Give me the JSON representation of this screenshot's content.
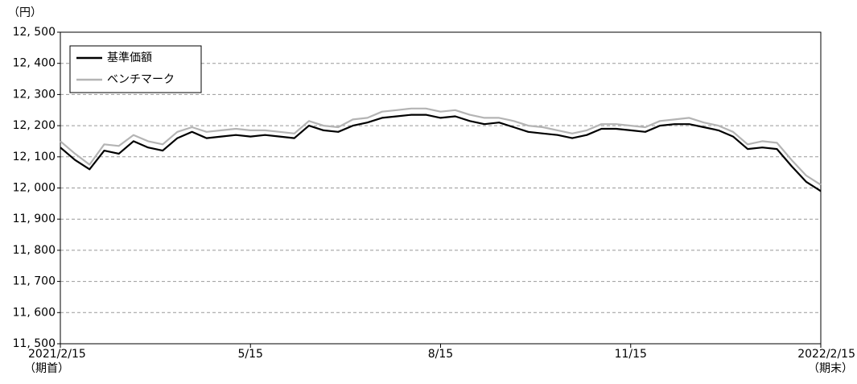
{
  "chart_data": {
    "type": "line",
    "y_unit_label": "（円）",
    "categories": [
      "2021/2/15",
      null,
      null,
      null,
      null,
      null,
      null,
      null,
      null,
      null,
      null,
      null,
      null,
      "5/15",
      null,
      null,
      null,
      null,
      null,
      null,
      null,
      null,
      null,
      null,
      null,
      null,
      "8/15",
      null,
      null,
      null,
      null,
      null,
      null,
      null,
      null,
      null,
      null,
      null,
      null,
      "11/15",
      null,
      null,
      null,
      null,
      null,
      null,
      null,
      null,
      null,
      null,
      null,
      null,
      "2022/2/15"
    ],
    "start_note": "（期首）",
    "end_note": "（期末）",
    "series": [
      {
        "name": "基準価額",
        "color": "#000000",
        "width": 2.2,
        "values": [
          12130,
          12090,
          12060,
          12120,
          12110,
          12150,
          12130,
          12120,
          12160,
          12180,
          12160,
          12165,
          12170,
          12165,
          12170,
          12165,
          12160,
          12200,
          12185,
          12180,
          12200,
          12210,
          12225,
          12230,
          12235,
          12235,
          12225,
          12230,
          12215,
          12205,
          12210,
          12195,
          12180,
          12175,
          12170,
          12160,
          12170,
          12190,
          12190,
          12185,
          12180,
          12200,
          12205,
          12205,
          12195,
          12185,
          12165,
          12125,
          12130,
          12125,
          12070,
          12020,
          11990
        ]
      },
      {
        "name": "ベンチマーク",
        "color": "#b4b4b4",
        "width": 2.2,
        "values": [
          12150,
          12110,
          12075,
          12140,
          12135,
          12170,
          12150,
          12140,
          12180,
          12195,
          12180,
          12185,
          12190,
          12185,
          12185,
          12180,
          12175,
          12215,
          12200,
          12195,
          12220,
          12225,
          12245,
          12250,
          12255,
          12255,
          12245,
          12250,
          12235,
          12225,
          12225,
          12215,
          12200,
          12195,
          12185,
          12175,
          12185,
          12205,
          12205,
          12200,
          12195,
          12215,
          12220,
          12225,
          12210,
          12200,
          12180,
          12140,
          12150,
          12145,
          12090,
          12040,
          12010
        ]
      }
    ],
    "ylim": [
      11500,
      12500
    ],
    "yticks": [
      {
        "value": 11500,
        "label": "11, 500"
      },
      {
        "value": 11600,
        "label": "11, 600"
      },
      {
        "value": 11700,
        "label": "11, 700"
      },
      {
        "value": 11800,
        "label": "11, 800"
      },
      {
        "value": 11900,
        "label": "11, 900"
      },
      {
        "value": 12000,
        "label": "12, 000"
      },
      {
        "value": 12100,
        "label": "12, 100"
      },
      {
        "value": 12200,
        "label": "12, 200"
      },
      {
        "value": 12300,
        "label": "12, 300"
      },
      {
        "value": 12400,
        "label": "12, 400"
      },
      {
        "value": 12500,
        "label": "12, 500"
      }
    ],
    "grid": true,
    "legend": "upper left"
  }
}
